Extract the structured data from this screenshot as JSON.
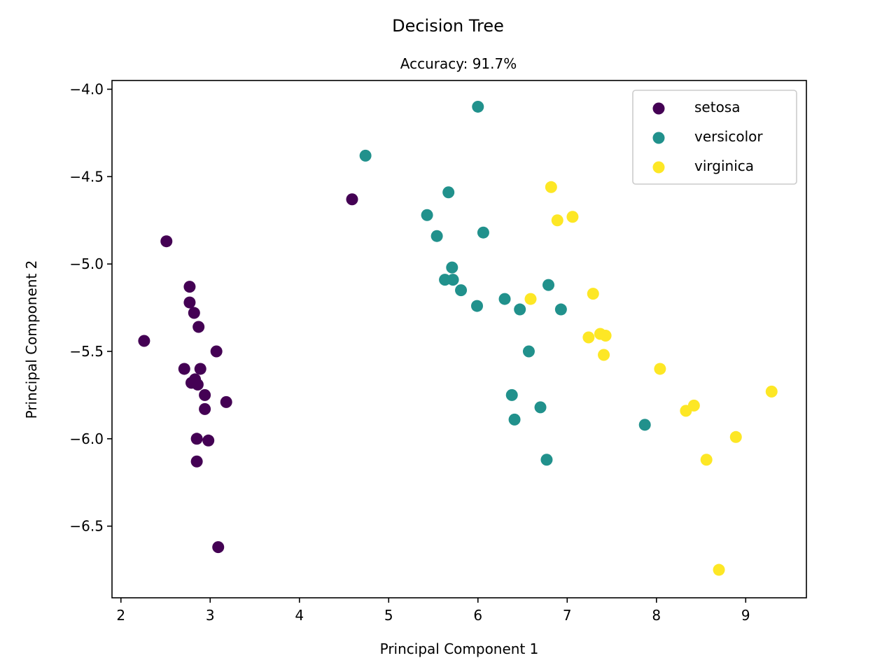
{
  "chart_data": {
    "type": "scatter",
    "suptitle": "Decision Tree",
    "title": "Accuracy: 91.7%",
    "xlabel": "Principal Component 1",
    "ylabel": "Principal Component 2",
    "xlim": [
      1.9,
      9.68
    ],
    "ylim": [
      -6.91,
      -3.95
    ],
    "xticks": [
      2,
      3,
      4,
      5,
      6,
      7,
      8,
      9
    ],
    "xtick_labels": [
      "2",
      "3",
      "4",
      "5",
      "6",
      "7",
      "8",
      "9"
    ],
    "yticks": [
      -4.0,
      -4.5,
      -5.0,
      -5.5,
      -6.0,
      -6.5
    ],
    "ytick_labels": [
      "−4.0",
      "−4.5",
      "−5.0",
      "−5.5",
      "−6.0",
      "−6.5"
    ],
    "grid": false,
    "legend_position": "top-right",
    "series": [
      {
        "name": "setosa",
        "color": "#440154",
        "points": [
          [
            2.26,
            -5.44
          ],
          [
            2.51,
            -4.87
          ],
          [
            2.77,
            -5.13
          ],
          [
            2.77,
            -5.22
          ],
          [
            2.82,
            -5.28
          ],
          [
            2.87,
            -5.36
          ],
          [
            2.71,
            -5.6
          ],
          [
            2.89,
            -5.6
          ],
          [
            2.79,
            -5.68
          ],
          [
            2.83,
            -5.66
          ],
          [
            2.86,
            -5.69
          ],
          [
            2.94,
            -5.75
          ],
          [
            2.94,
            -5.83
          ],
          [
            3.07,
            -5.5
          ],
          [
            3.18,
            -5.79
          ],
          [
            2.85,
            -6.0
          ],
          [
            2.98,
            -6.01
          ],
          [
            2.85,
            -6.13
          ],
          [
            3.09,
            -6.62
          ],
          [
            4.59,
            -4.63
          ]
        ]
      },
      {
        "name": "versicolor",
        "color": "#21918c",
        "points": [
          [
            6.0,
            -4.1
          ],
          [
            4.74,
            -4.38
          ],
          [
            5.67,
            -4.59
          ],
          [
            5.43,
            -4.72
          ],
          [
            5.54,
            -4.84
          ],
          [
            6.06,
            -4.82
          ],
          [
            5.71,
            -5.02
          ],
          [
            5.63,
            -5.09
          ],
          [
            5.72,
            -5.09
          ],
          [
            5.81,
            -5.15
          ],
          [
            5.99,
            -5.24
          ],
          [
            6.3,
            -5.2
          ],
          [
            6.47,
            -5.26
          ],
          [
            6.79,
            -5.12
          ],
          [
            6.93,
            -5.26
          ],
          [
            6.57,
            -5.5
          ],
          [
            6.38,
            -5.75
          ],
          [
            6.7,
            -5.82
          ],
          [
            6.41,
            -5.89
          ],
          [
            6.77,
            -6.12
          ],
          [
            7.87,
            -5.92
          ]
        ]
      },
      {
        "name": "virginica",
        "color": "#fde725",
        "points": [
          [
            6.82,
            -4.56
          ],
          [
            6.89,
            -4.75
          ],
          [
            7.06,
            -4.73
          ],
          [
            6.59,
            -5.2
          ],
          [
            7.29,
            -5.17
          ],
          [
            7.24,
            -5.42
          ],
          [
            7.37,
            -5.4
          ],
          [
            7.43,
            -5.41
          ],
          [
            7.41,
            -5.52
          ],
          [
            8.04,
            -5.6
          ],
          [
            8.33,
            -5.84
          ],
          [
            8.42,
            -5.81
          ],
          [
            8.89,
            -5.99
          ],
          [
            8.56,
            -6.12
          ],
          [
            9.29,
            -5.73
          ],
          [
            8.7,
            -6.75
          ]
        ]
      }
    ]
  }
}
